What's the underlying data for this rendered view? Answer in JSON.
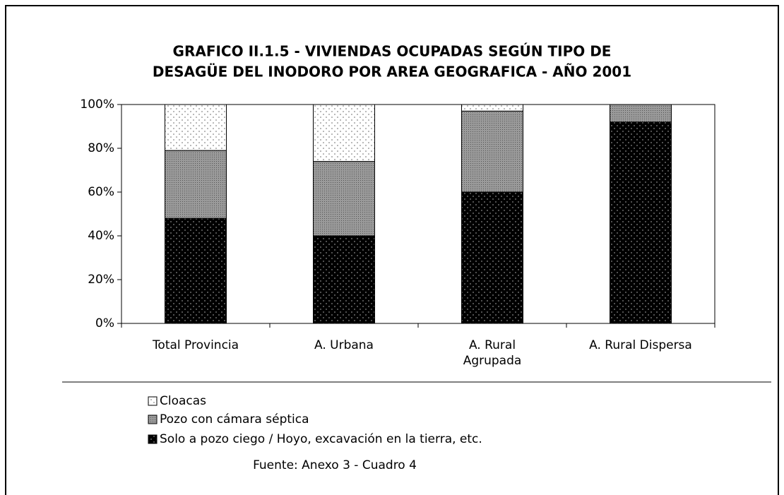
{
  "chart_data": {
    "type": "stacked_bar",
    "title": [
      "GRAFICO II.1.5 - VIVIENDAS OCUPADAS SEGÚN TIPO DE",
      "DESAGÜE DEL INODORO POR  AREA GEOGRAFICA - AÑO 2001"
    ],
    "categories": [
      "Total Provincia",
      "A. Urbana",
      "A. Rural Agrupada",
      "A. Rural Dispersa"
    ],
    "series": [
      {
        "name": "Solo a pozo ciego / Hoyo, excavación en la tierra, etc.",
        "color": "#000000",
        "values": [
          48,
          40,
          60,
          92
        ]
      },
      {
        "name": "Pozo con cámara séptica",
        "color": "#9a9a9a",
        "values": [
          31,
          34,
          37,
          8
        ]
      },
      {
        "name": "Cloacas",
        "color": "#ffffff",
        "values": [
          21,
          26,
          3,
          0
        ]
      }
    ],
    "ylim": [
      0,
      100
    ],
    "yticks": [
      {
        "value": 0,
        "label": "0%"
      },
      {
        "value": 20,
        "label": "20%"
      },
      {
        "value": 40,
        "label": "40%"
      },
      {
        "value": 60,
        "label": "60%"
      },
      {
        "value": 80,
        "label": "80%"
      },
      {
        "value": 100,
        "label": "100%"
      }
    ],
    "source": "Fuente: Anexo 3 - Cuadro 4"
  }
}
